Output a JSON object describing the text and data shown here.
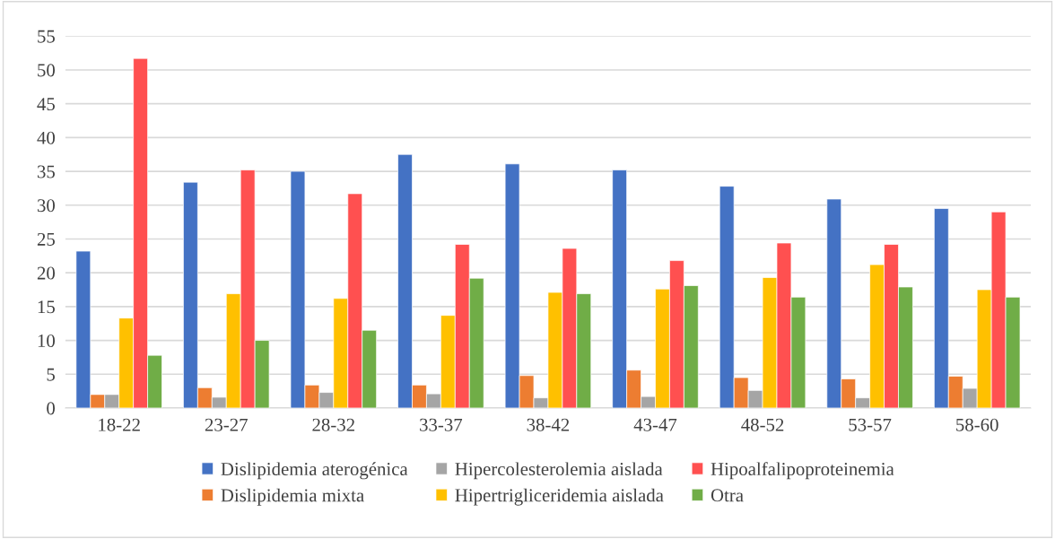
{
  "chart_data": {
    "type": "bar",
    "categories": [
      "18-22",
      "23-27",
      "28-32",
      "33-37",
      "38-42",
      "43-47",
      "48-52",
      "53-57",
      "58-60"
    ],
    "series": [
      {
        "name": "Dislipidemia aterogénica",
        "color": "#4472c4",
        "values": [
          23.2,
          33.4,
          35.0,
          37.5,
          36.1,
          35.2,
          32.8,
          30.9,
          29.5
        ]
      },
      {
        "name": "Dislipidemia mixta",
        "color": "#ed7d31",
        "values": [
          2.0,
          3.0,
          3.4,
          3.4,
          4.8,
          5.6,
          4.5,
          4.3,
          4.7
        ]
      },
      {
        "name": "Hipercolesterolemia aislada",
        "color": "#a5a5a5",
        "values": [
          2.0,
          1.6,
          2.3,
          2.1,
          1.5,
          1.7,
          2.6,
          1.5,
          2.9
        ]
      },
      {
        "name": "Hipertrigliceridemia aislada",
        "color": "#ffc000",
        "values": [
          13.3,
          16.9,
          16.2,
          13.7,
          17.1,
          17.6,
          19.3,
          21.2,
          17.5
        ]
      },
      {
        "name": "Hipoalfalipoproteinemia",
        "color": "#ff5050",
        "values": [
          51.7,
          35.2,
          31.7,
          24.2,
          23.6,
          21.8,
          24.4,
          24.2,
          29.0
        ]
      },
      {
        "name": "Otra",
        "color": "#70ad47",
        "values": [
          7.8,
          10.0,
          11.5,
          19.2,
          16.9,
          18.1,
          16.4,
          17.9,
          16.4
        ]
      }
    ],
    "ylim": [
      0,
      55
    ],
    "yticks": [
      0,
      5,
      10,
      15,
      20,
      25,
      30,
      35,
      40,
      45,
      50,
      55
    ],
    "grid": "y",
    "legend": "bottom"
  }
}
